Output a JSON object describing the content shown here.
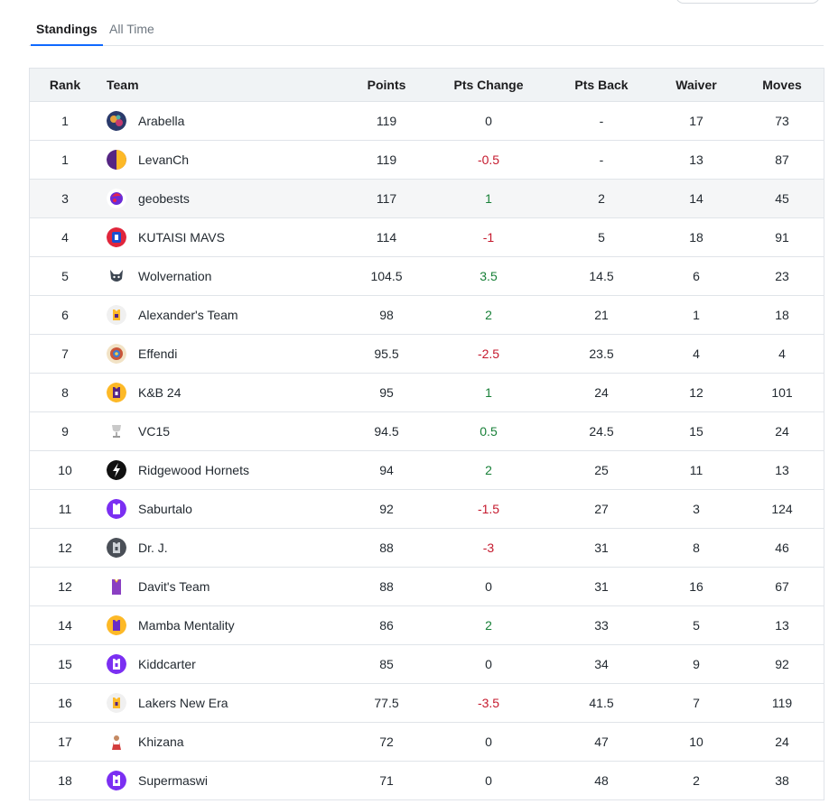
{
  "tabs": [
    {
      "label": "Standings",
      "active": true
    },
    {
      "label": "All Time",
      "active": false
    }
  ],
  "columns": {
    "rank": "Rank",
    "team": "Team",
    "points": "Points",
    "pts_change": "Pts Change",
    "pts_back": "Pts Back",
    "waiver": "Waiver",
    "moves": "Moves"
  },
  "colors": {
    "accent": "#0f69ff",
    "positive": "#188038",
    "negative": "#c5192d"
  },
  "rows": [
    {
      "rank": "1",
      "team": "Arabella",
      "icon": "arabella-avatar-icon",
      "points": "119",
      "pts_change": "0",
      "change_sign": "zero",
      "pts_back": "-",
      "waiver": "17",
      "moves": "73"
    },
    {
      "rank": "1",
      "team": "LevanCh",
      "icon": "levanch-avatar-icon",
      "points": "119",
      "pts_change": "-0.5",
      "change_sign": "neg",
      "pts_back": "-",
      "waiver": "13",
      "moves": "87"
    },
    {
      "rank": "3",
      "team": "geobests",
      "icon": "geobests-avatar-icon",
      "points": "117",
      "pts_change": "1",
      "change_sign": "pos",
      "pts_back": "2",
      "waiver": "14",
      "moves": "45",
      "highlight": true
    },
    {
      "rank": "4",
      "team": "KUTAISI MAVS",
      "icon": "kutaisi-mavs-avatar-icon",
      "points": "114",
      "pts_change": "-1",
      "change_sign": "neg",
      "pts_back": "5",
      "waiver": "18",
      "moves": "91"
    },
    {
      "rank": "5",
      "team": "Wolvernation",
      "icon": "wolvernation-avatar-icon",
      "points": "104.5",
      "pts_change": "3.5",
      "change_sign": "pos",
      "pts_back": "14.5",
      "waiver": "6",
      "moves": "23"
    },
    {
      "rank": "6",
      "team": "Alexander's Team",
      "icon": "alexanders-team-avatar-icon",
      "points": "98",
      "pts_change": "2",
      "change_sign": "pos",
      "pts_back": "21",
      "waiver": "1",
      "moves": "18"
    },
    {
      "rank": "7",
      "team": "Effendi",
      "icon": "effendi-avatar-icon",
      "points": "95.5",
      "pts_change": "-2.5",
      "change_sign": "neg",
      "pts_back": "23.5",
      "waiver": "4",
      "moves": "4"
    },
    {
      "rank": "8",
      "team": "K&B 24",
      "icon": "kb24-avatar-icon",
      "points": "95",
      "pts_change": "1",
      "change_sign": "pos",
      "pts_back": "24",
      "waiver": "12",
      "moves": "101"
    },
    {
      "rank": "9",
      "team": "VC15",
      "icon": "vc15-trophy-icon",
      "points": "94.5",
      "pts_change": "0.5",
      "change_sign": "pos",
      "pts_back": "24.5",
      "waiver": "15",
      "moves": "24"
    },
    {
      "rank": "10",
      "team": "Ridgewood Hornets",
      "icon": "ridgewood-hornets-avatar-icon",
      "points": "94",
      "pts_change": "2",
      "change_sign": "pos",
      "pts_back": "25",
      "waiver": "11",
      "moves": "13"
    },
    {
      "rank": "11",
      "team": "Saburtalo",
      "icon": "saburtalo-avatar-icon",
      "points": "92",
      "pts_change": "-1.5",
      "change_sign": "neg",
      "pts_back": "27",
      "waiver": "3",
      "moves": "124"
    },
    {
      "rank": "12",
      "team": "Dr. J.",
      "icon": "dr-j-avatar-icon",
      "points": "88",
      "pts_change": "-3",
      "change_sign": "neg",
      "pts_back": "31",
      "waiver": "8",
      "moves": "46"
    },
    {
      "rank": "12",
      "team": "Davit's Team",
      "icon": "davits-team-jersey-icon",
      "points": "88",
      "pts_change": "0",
      "change_sign": "zero",
      "pts_back": "31",
      "waiver": "16",
      "moves": "67"
    },
    {
      "rank": "14",
      "team": "Mamba Mentality",
      "icon": "mamba-mentality-avatar-icon",
      "points": "86",
      "pts_change": "2",
      "change_sign": "pos",
      "pts_back": "33",
      "waiver": "5",
      "moves": "13"
    },
    {
      "rank": "15",
      "team": "Kiddcarter",
      "icon": "kiddcarter-avatar-icon",
      "points": "85",
      "pts_change": "0",
      "change_sign": "zero",
      "pts_back": "34",
      "waiver": "9",
      "moves": "92"
    },
    {
      "rank": "16",
      "team": "Lakers New Era",
      "icon": "lakers-new-era-avatar-icon",
      "points": "77.5",
      "pts_change": "-3.5",
      "change_sign": "neg",
      "pts_back": "41.5",
      "waiver": "7",
      "moves": "119"
    },
    {
      "rank": "17",
      "team": "Khizana",
      "icon": "khizana-avatar-icon",
      "points": "72",
      "pts_change": "0",
      "change_sign": "zero",
      "pts_back": "47",
      "waiver": "10",
      "moves": "24"
    },
    {
      "rank": "18",
      "team": "Supermaswi",
      "icon": "supermaswi-avatar-icon",
      "points": "71",
      "pts_change": "0",
      "change_sign": "zero",
      "pts_back": "48",
      "waiver": "2",
      "moves": "38"
    }
  ]
}
